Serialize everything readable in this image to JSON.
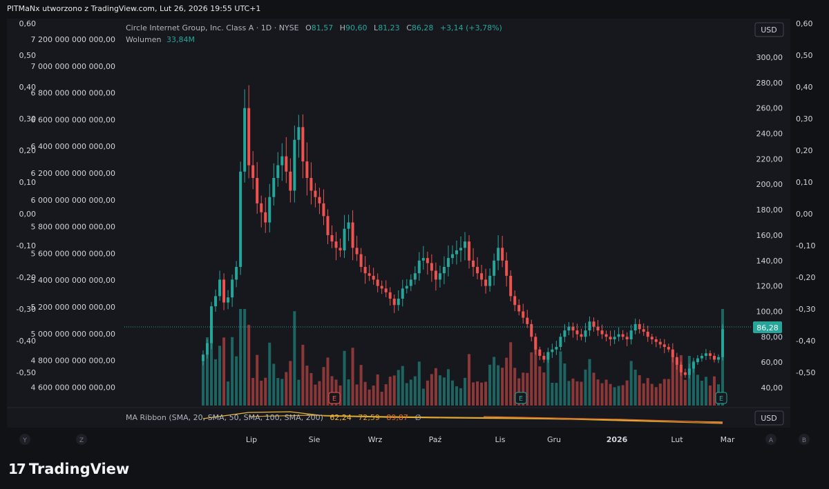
{
  "caption": "PITMaNx utworzono z TradingView.com, Lut 26, 2026 19:55 UTC+1",
  "brand": "TradingView",
  "legend": {
    "symbol": "Circle Internet Group, Inc. Class A · 1D · NYSE",
    "o_label": "O",
    "o_value": "81,57",
    "h_label": "H",
    "h_value": "90,60",
    "l_label": "L",
    "l_value": "81,23",
    "c_label": "C",
    "c_value": "86,28",
    "change": "+3,14 (+3,78%)",
    "volume_label": "Wolumen",
    "volume_value": "33,84M"
  },
  "indicator": {
    "label": "MA Ribbon (SMA, 20, SMA, 50, SMA, 100, SMA, 200)",
    "v1": "62,24",
    "v2": "72,59",
    "v3": "89,87",
    "v4": "∅"
  },
  "currency_top": "USD",
  "currency_bottom": "USD",
  "price_tag": "86,28",
  "corner_buttons": {
    "y": "Y",
    "z": "Z",
    "a": "A",
    "b": "B"
  },
  "colors": {
    "up": "#26a69a",
    "down": "#ef5350",
    "background": "#111216",
    "pane": "#16181e",
    "ma20": "#f0b93a",
    "ma50": "#d9a02a",
    "ma100": "#e06c2e"
  },
  "chart_data": {
    "type": "candlestick",
    "title": "Circle Internet Group, Inc. Class A · 1D · NYSE",
    "series": [
      {
        "name": "price",
        "close": [
          66,
          75,
          104,
          112,
          125,
          107,
          111,
          125,
          135,
          210,
          260,
          215,
          205,
          185,
          178,
          170,
          190,
          205,
          215,
          222,
          210,
          195,
          235,
          245,
          218,
          205,
          195,
          190,
          185,
          175,
          160,
          155,
          150,
          148,
          165,
          170,
          150,
          145,
          135,
          130,
          128,
          125,
          120,
          118,
          115,
          110,
          105,
          110,
          118,
          120,
          125,
          130,
          140,
          142,
          138,
          132,
          125,
          130,
          135,
          142,
          145,
          148,
          150,
          155,
          140,
          135,
          130,
          125,
          120,
          128,
          140,
          150,
          140,
          128,
          112,
          105,
          100,
          95,
          90,
          80,
          70,
          65,
          62,
          68,
          70,
          72,
          80,
          85,
          88,
          85,
          82,
          80,
          85,
          92,
          88,
          85,
          82,
          80,
          78,
          80,
          82,
          80,
          78,
          85,
          90,
          86,
          84,
          80,
          78,
          76,
          74,
          72,
          70,
          64,
          58,
          52,
          50,
          55,
          60,
          63,
          65,
          67,
          65,
          62,
          64,
          86
        ]
      }
    ],
    "volume_note": "Wolumen 33,84M",
    "x_labels": [
      "Lip",
      "Sie",
      "Wrz",
      "Paź",
      "Lis",
      "Gru",
      "2026",
      "Lut",
      "Mar"
    ],
    "y_right_labels": [
      "300,00",
      "280,00",
      "260,00",
      "240,00",
      "220,00",
      "200,00",
      "180,00",
      "160,00",
      "140,00",
      "120,00",
      "100,00",
      "80,00",
      "60,00",
      "40,00"
    ],
    "y_left_labels": [
      "7 200 000 000 000,00",
      "7 000 000 000 000,00",
      "6 800 000 000 000,00",
      "6 600 000 000 000,00",
      "6 400 000 000 000,00",
      "6 200 000 000 000,00",
      "6 000 000 000 000,00",
      "5 800 000 000 000,00",
      "5 600 000 000 000,00",
      "5 400 000 000 000,00",
      "5 200 000 000 000,00",
      "5 000 000 000 000,00",
      "4 800 000 000 000,00",
      "4 600 000 000 000,00"
    ],
    "y_outer_labels": [
      "0,60",
      "0,50",
      "0,40",
      "0,30",
      "0,20",
      "0,10",
      "0,00",
      "-0,10",
      "-0,20",
      "-0,30",
      "-0,40",
      "-0,50"
    ],
    "earnings_markers": [
      "E",
      "E",
      "E"
    ],
    "ylim": [
      30,
      310
    ]
  }
}
